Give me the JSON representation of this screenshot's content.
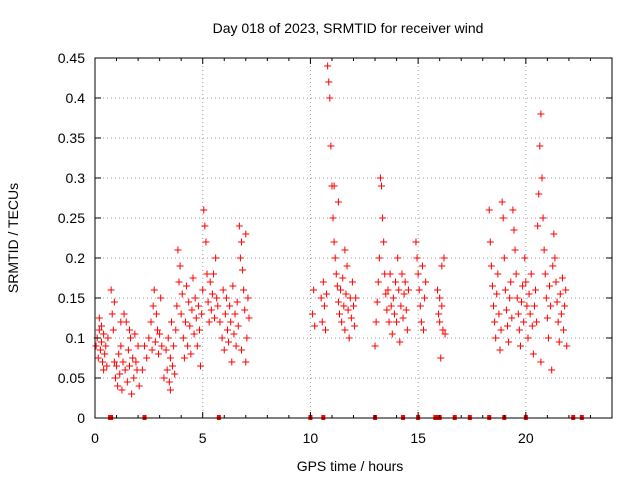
{
  "chart_data": {
    "type": "scatter",
    "title": "Day 018 of 2023, SRMTID for receiver wind",
    "xlabel": "GPS time / hours",
    "ylabel": "SRMTID / TECUs",
    "xlim": [
      0,
      24
    ],
    "ylim": [
      0,
      0.45
    ],
    "x_ticks": [
      0,
      5,
      10,
      15,
      20
    ],
    "y_ticks": [
      0,
      0.05,
      0.1,
      0.15,
      0.2,
      0.25,
      0.3,
      0.35,
      0.4,
      0.45
    ],
    "x_tick_labels": [
      "0",
      "5",
      "10",
      "15",
      "20"
    ],
    "y_tick_labels": [
      "0",
      "0.05",
      "0.1",
      "0.15",
      "0.2",
      "0.25",
      "0.3",
      "0.35",
      "0.4",
      "0.45"
    ],
    "grid": true,
    "marker_color": "#ff0000",
    "series": [
      {
        "name": "SRMTID",
        "marker": "+",
        "points": [
          [
            0.05,
            0.09
          ],
          [
            0.1,
            0.1
          ],
          [
            0.15,
            0.075
          ],
          [
            0.2,
            0.11
          ],
          [
            0.25,
            0.085
          ],
          [
            0.3,
            0.095
          ],
          [
            0.35,
            0.07
          ],
          [
            0.4,
            0.105
          ],
          [
            0.45,
            0.08
          ],
          [
            0.5,
            0.09
          ],
          [
            0.55,
            0.065
          ],
          [
            0.6,
            0.1
          ],
          [
            0.2,
            0.125
          ],
          [
            0.3,
            0.115
          ],
          [
            0.4,
            0.06
          ],
          [
            0.75,
            0.16
          ],
          [
            0.8,
            0.13
          ],
          [
            0.85,
            0.11
          ],
          [
            0.9,
            0.07
          ],
          [
            0.95,
            0.05
          ],
          [
            1.0,
            0.065
          ],
          [
            1.05,
            0.04
          ],
          [
            1.1,
            0.08
          ],
          [
            1.15,
            0.055
          ],
          [
            1.2,
            0.09
          ],
          [
            1.25,
            0.035
          ],
          [
            1.3,
            0.07
          ],
          [
            1.35,
            0.13
          ],
          [
            1.4,
            0.06
          ],
          [
            1.45,
            0.12
          ],
          [
            1.5,
            0.045
          ],
          [
            1.55,
            0.085
          ],
          [
            1.6,
            0.065
          ],
          [
            1.65,
            0.1
          ],
          [
            1.7,
            0.03
          ],
          [
            1.75,
            0.075
          ],
          [
            1.8,
            0.05
          ],
          [
            1.85,
            0.105
          ],
          [
            1.9,
            0.07
          ],
          [
            1.95,
            0.06
          ],
          [
            2.0,
            0.09
          ],
          [
            2.05,
            0.04
          ],
          [
            0.9,
            0.145
          ],
          [
            1.2,
            0.12
          ],
          [
            1.6,
            0.11
          ],
          [
            2.2,
            0.06
          ],
          [
            2.3,
            0.09
          ],
          [
            2.4,
            0.075
          ],
          [
            2.5,
            0.1
          ],
          [
            2.6,
            0.12
          ],
          [
            2.65,
            0.085
          ],
          [
            2.7,
            0.14
          ],
          [
            2.75,
            0.16
          ],
          [
            2.8,
            0.095
          ],
          [
            2.85,
            0.13
          ],
          [
            2.9,
            0.11
          ],
          [
            2.95,
            0.08
          ],
          [
            3.0,
            0.105
          ],
          [
            3.05,
            0.15
          ],
          [
            3.1,
            0.09
          ],
          [
            3.2,
            0.05
          ],
          [
            3.3,
            0.085
          ],
          [
            3.35,
            0.06
          ],
          [
            3.4,
            0.1
          ],
          [
            3.45,
            0.045
          ],
          [
            3.5,
            0.075
          ],
          [
            3.55,
            0.12
          ],
          [
            3.6,
            0.065
          ],
          [
            3.65,
            0.09
          ],
          [
            3.7,
            0.055
          ],
          [
            3.75,
            0.11
          ],
          [
            3.5,
            0.035
          ],
          [
            3.8,
            0.14
          ],
          [
            3.85,
            0.21
          ],
          [
            3.9,
            0.17
          ],
          [
            3.95,
            0.19
          ],
          [
            4.0,
            0.13
          ],
          [
            4.05,
            0.155
          ],
          [
            4.1,
            0.1
          ],
          [
            4.15,
            0.075
          ],
          [
            4.2,
            0.12
          ],
          [
            4.25,
            0.165
          ],
          [
            4.3,
            0.09
          ],
          [
            4.35,
            0.145
          ],
          [
            4.4,
            0.115
          ],
          [
            4.45,
            0.08
          ],
          [
            4.5,
            0.135
          ],
          [
            4.55,
            0.175
          ],
          [
            4.6,
            0.105
          ],
          [
            4.65,
            0.15
          ],
          [
            4.7,
            0.125
          ],
          [
            4.75,
            0.09
          ],
          [
            4.8,
            0.14
          ],
          [
            4.85,
            0.11
          ],
          [
            4.9,
            0.065
          ],
          [
            4.95,
            0.13
          ],
          [
            5.0,
            0.16
          ],
          [
            5.05,
            0.26
          ],
          [
            5.1,
            0.24
          ],
          [
            5.15,
            0.22
          ],
          [
            5.2,
            0.18
          ],
          [
            5.25,
            0.145
          ],
          [
            5.3,
            0.12
          ],
          [
            5.35,
            0.17
          ],
          [
            5.4,
            0.135
          ],
          [
            5.45,
            0.155
          ],
          [
            5.5,
            0.18
          ],
          [
            5.55,
            0.125
          ],
          [
            5.6,
            0.2
          ],
          [
            5.65,
            0.15
          ],
          [
            5.7,
            0.14
          ],
          [
            5.8,
            0.12
          ],
          [
            5.9,
            0.1
          ],
          [
            5.95,
            0.16
          ],
          [
            6.0,
            0.085
          ],
          [
            6.05,
            0.13
          ],
          [
            6.1,
            0.15
          ],
          [
            6.15,
            0.11
          ],
          [
            6.2,
            0.095
          ],
          [
            6.25,
            0.14
          ],
          [
            6.3,
            0.12
          ],
          [
            6.35,
            0.07
          ],
          [
            6.4,
            0.165
          ],
          [
            6.45,
            0.105
          ],
          [
            6.5,
            0.13
          ],
          [
            6.55,
            0.09
          ],
          [
            6.6,
            0.145
          ],
          [
            6.65,
            0.115
          ],
          [
            6.7,
            0.24
          ],
          [
            6.75,
            0.2
          ],
          [
            6.8,
            0.22
          ],
          [
            6.85,
            0.185
          ],
          [
            6.9,
            0.16
          ],
          [
            6.95,
            0.135
          ],
          [
            7.0,
            0.23
          ],
          [
            7.05,
            0.1
          ],
          [
            7.1,
            0.15
          ],
          [
            7.15,
            0.125
          ],
          [
            6.8,
            0.085
          ],
          [
            7.0,
            0.07
          ],
          [
            10.1,
            0.13
          ],
          [
            10.15,
            0.16
          ],
          [
            10.2,
            0.115
          ],
          [
            10.5,
            0.15
          ],
          [
            10.55,
            0.12
          ],
          [
            10.6,
            0.17
          ],
          [
            10.65,
            0.14
          ],
          [
            10.7,
            0.11
          ],
          [
            10.75,
            0.155
          ],
          [
            10.8,
            0.44
          ],
          [
            10.85,
            0.42
          ],
          [
            10.9,
            0.4
          ],
          [
            10.95,
            0.34
          ],
          [
            11.0,
            0.29
          ],
          [
            11.05,
            0.25
          ],
          [
            11.1,
            0.22
          ],
          [
            11.15,
            0.2
          ],
          [
            11.2,
            0.18
          ],
          [
            11.25,
            0.165
          ],
          [
            11.3,
            0.145
          ],
          [
            11.35,
            0.13
          ],
          [
            11.4,
            0.16
          ],
          [
            11.45,
            0.12
          ],
          [
            11.5,
            0.175
          ],
          [
            11.55,
            0.14
          ],
          [
            11.6,
            0.11
          ],
          [
            11.65,
            0.155
          ],
          [
            11.7,
            0.19
          ],
          [
            11.75,
            0.135
          ],
          [
            11.8,
            0.1
          ],
          [
            11.85,
            0.15
          ],
          [
            11.9,
            0.125
          ],
          [
            11.95,
            0.17
          ],
          [
            12.0,
            0.14
          ],
          [
            12.05,
            0.115
          ],
          [
            12.1,
            0.15
          ],
          [
            11.3,
            0.27
          ],
          [
            11.1,
            0.29
          ],
          [
            11.6,
            0.21
          ],
          [
            13.0,
            0.09
          ],
          [
            13.05,
            0.12
          ],
          [
            13.1,
            0.145
          ],
          [
            13.15,
            0.17
          ],
          [
            13.2,
            0.2
          ],
          [
            13.25,
            0.3
          ],
          [
            13.3,
            0.29
          ],
          [
            13.35,
            0.25
          ],
          [
            13.4,
            0.22
          ],
          [
            13.45,
            0.18
          ],
          [
            13.5,
            0.155
          ],
          [
            13.55,
            0.135
          ],
          [
            13.6,
            0.16
          ],
          [
            13.65,
            0.12
          ],
          [
            13.7,
            0.18
          ],
          [
            13.75,
            0.14
          ],
          [
            13.8,
            0.105
          ],
          [
            13.85,
            0.15
          ],
          [
            13.9,
            0.13
          ],
          [
            13.95,
            0.17
          ],
          [
            14.0,
            0.12
          ],
          [
            14.05,
            0.2
          ],
          [
            14.1,
            0.16
          ],
          [
            14.15,
            0.095
          ],
          [
            14.2,
            0.14
          ],
          [
            14.25,
            0.18
          ],
          [
            14.3,
            0.125
          ],
          [
            14.35,
            0.155
          ],
          [
            14.4,
            0.17
          ],
          [
            14.45,
            0.135
          ],
          [
            14.5,
            0.11
          ],
          [
            14.55,
            0.16
          ],
          [
            14.9,
            0.22
          ],
          [
            14.95,
            0.2
          ],
          [
            15.0,
            0.18
          ],
          [
            15.05,
            0.16
          ],
          [
            15.1,
            0.14
          ],
          [
            15.15,
            0.12
          ],
          [
            15.2,
            0.19
          ],
          [
            15.25,
            0.11
          ],
          [
            15.3,
            0.15
          ],
          [
            15.35,
            0.17
          ],
          [
            15.9,
            0.16
          ],
          [
            15.95,
            0.13
          ],
          [
            16.0,
            0.12
          ],
          [
            16.05,
            0.075
          ],
          [
            16.1,
            0.14
          ],
          [
            16.15,
            0.11
          ],
          [
            16.2,
            0.2
          ],
          [
            16.25,
            0.105
          ],
          [
            16.0,
            0.15
          ],
          [
            16.1,
            0.19
          ],
          [
            18.3,
            0.26
          ],
          [
            18.35,
            0.22
          ],
          [
            18.4,
            0.19
          ],
          [
            18.45,
            0.165
          ],
          [
            18.5,
            0.14
          ],
          [
            18.55,
            0.12
          ],
          [
            18.6,
            0.1
          ],
          [
            18.65,
            0.155
          ],
          [
            18.7,
            0.18
          ],
          [
            18.75,
            0.13
          ],
          [
            18.8,
            0.085
          ],
          [
            18.85,
            0.11
          ],
          [
            18.9,
            0.27
          ],
          [
            18.95,
            0.25
          ],
          [
            19.0,
            0.2
          ],
          [
            19.05,
            0.16
          ],
          [
            19.1,
            0.135
          ],
          [
            19.15,
            0.115
          ],
          [
            19.2,
            0.095
          ],
          [
            19.25,
            0.15
          ],
          [
            19.3,
            0.17
          ],
          [
            19.35,
            0.125
          ],
          [
            19.4,
            0.26
          ],
          [
            19.45,
            0.235
          ],
          [
            19.5,
            0.21
          ],
          [
            19.55,
            0.18
          ],
          [
            19.6,
            0.15
          ],
          [
            19.65,
            0.13
          ],
          [
            19.7,
            0.11
          ],
          [
            19.75,
            0.09
          ],
          [
            19.8,
            0.145
          ],
          [
            19.85,
            0.165
          ],
          [
            19.9,
            0.12
          ],
          [
            19.95,
            0.2
          ],
          [
            20.0,
            0.17
          ],
          [
            20.05,
            0.14
          ],
          [
            20.1,
            0.1
          ],
          [
            20.15,
            0.155
          ],
          [
            20.2,
            0.13
          ],
          [
            20.25,
            0.18
          ],
          [
            20.3,
            0.115
          ],
          [
            20.35,
            0.08
          ],
          [
            20.4,
            0.14
          ],
          [
            20.45,
            0.16
          ],
          [
            20.5,
            0.12
          ],
          [
            20.55,
            0.24
          ],
          [
            20.6,
            0.28
          ],
          [
            20.65,
            0.34
          ],
          [
            20.7,
            0.38
          ],
          [
            20.75,
            0.3
          ],
          [
            20.8,
            0.25
          ],
          [
            20.85,
            0.21
          ],
          [
            20.9,
            0.18
          ],
          [
            20.95,
            0.15
          ],
          [
            21.0,
            0.125
          ],
          [
            21.05,
            0.1
          ],
          [
            21.1,
            0.165
          ],
          [
            21.15,
            0.14
          ],
          [
            21.2,
            0.06
          ],
          [
            21.25,
            0.19
          ],
          [
            21.3,
            0.23
          ],
          [
            21.35,
            0.2
          ],
          [
            21.4,
            0.17
          ],
          [
            21.45,
            0.145
          ],
          [
            21.5,
            0.12
          ],
          [
            21.55,
            0.095
          ],
          [
            21.6,
            0.155
          ],
          [
            21.65,
            0.13
          ],
          [
            21.7,
            0.175
          ],
          [
            21.75,
            0.11
          ],
          [
            21.8,
            0.14
          ],
          [
            21.85,
            0.16
          ],
          [
            21.9,
            0.09
          ],
          [
            20.7,
            0.07
          ]
        ]
      }
    ],
    "zero_line_markers_x": [
      0.7,
      0.75,
      2.3,
      5.75,
      10.0,
      10.6,
      13.0,
      14.3,
      15.0,
      15.8,
      15.9,
      16.0,
      16.7,
      17.4,
      18.3,
      19.0,
      20.0,
      22.2,
      22.6
    ]
  }
}
